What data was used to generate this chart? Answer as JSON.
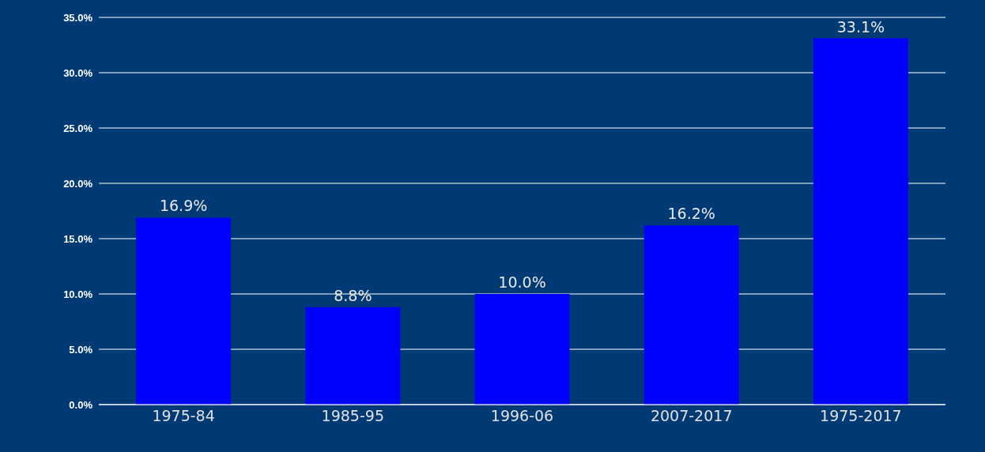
{
  "chart_data": {
    "type": "bar",
    "categories": [
      "1975-84",
      "1985-95",
      "1996-06",
      "2007-2017",
      "1975-2017"
    ],
    "values": [
      16.9,
      8.8,
      10.0,
      16.2,
      33.1
    ],
    "value_labels": [
      "16.9%",
      "8.8%",
      "10.0%",
      "16.2%",
      "33.1%"
    ],
    "color": "#0000ff",
    "ylim": [
      0,
      35
    ],
    "yticks": [
      {
        "value": 0,
        "label": "0.0%"
      },
      {
        "value": 5,
        "label": "5.0%"
      },
      {
        "value": 10,
        "label": "10.0%"
      },
      {
        "value": 15,
        "label": "15.0%"
      },
      {
        "value": 20,
        "label": "20.0%"
      },
      {
        "value": 25,
        "label": "25.0%"
      },
      {
        "value": 30,
        "label": "30.0%"
      },
      {
        "value": 35,
        "label": "35.0%"
      }
    ],
    "grid": "y"
  }
}
